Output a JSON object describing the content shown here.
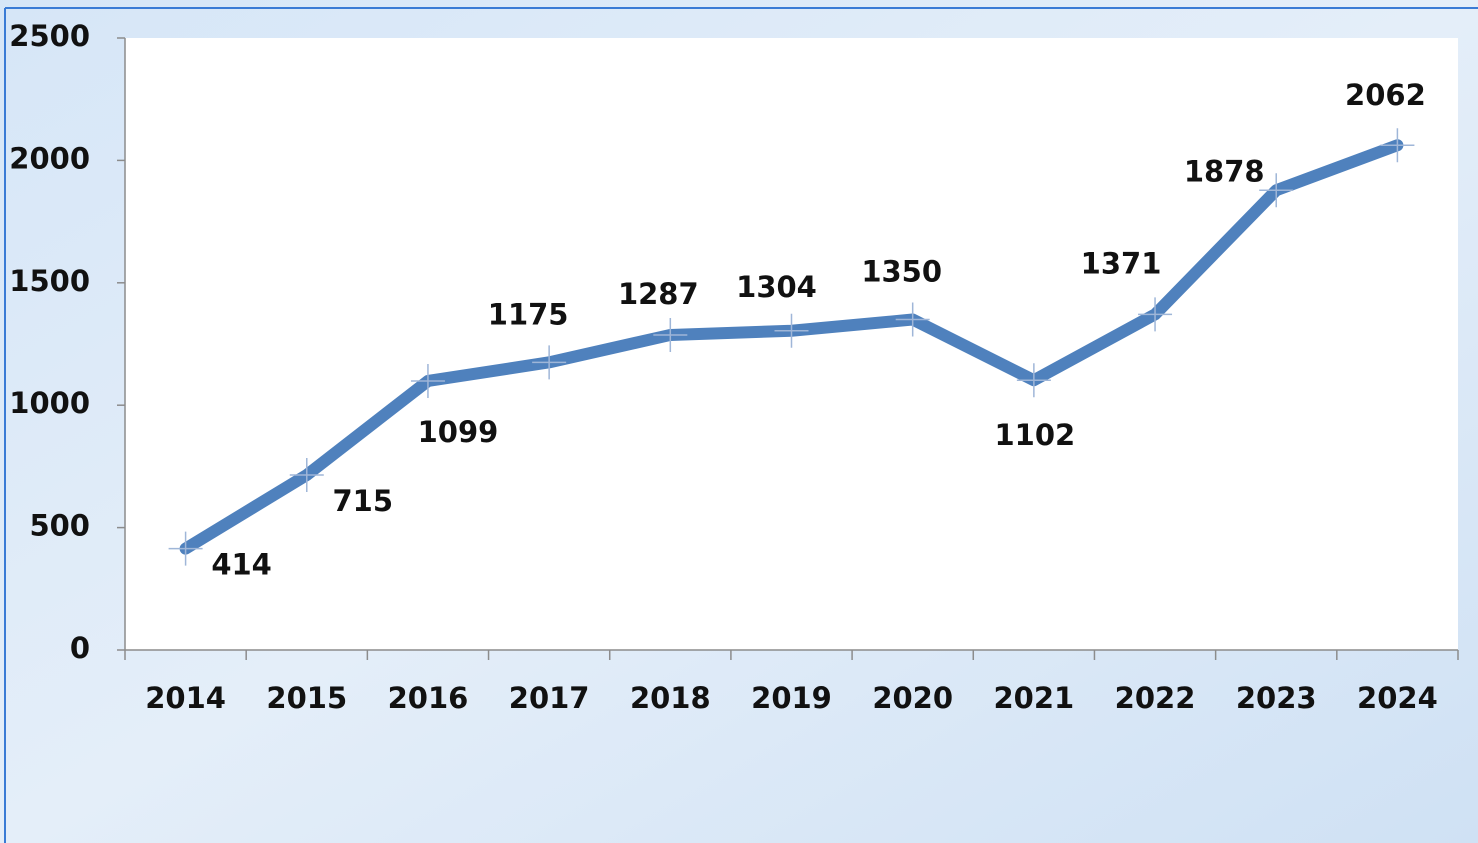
{
  "chart_data": {
    "type": "line",
    "categories": [
      "2014",
      "2015",
      "2016",
      "2017",
      "2018",
      "2019",
      "2020",
      "2021",
      "2022",
      "2023",
      "2024"
    ],
    "series": [
      {
        "name": "",
        "color": "#4f81bd",
        "values": [
          414,
          715,
          1099,
          1175,
          1287,
          1304,
          1350,
          1102,
          1371,
          1878,
          2062
        ]
      }
    ],
    "ylim": [
      0,
      2500
    ],
    "yticks": [
      0,
      500,
      1000,
      1500,
      2000,
      2500
    ],
    "grid": false
  }
}
